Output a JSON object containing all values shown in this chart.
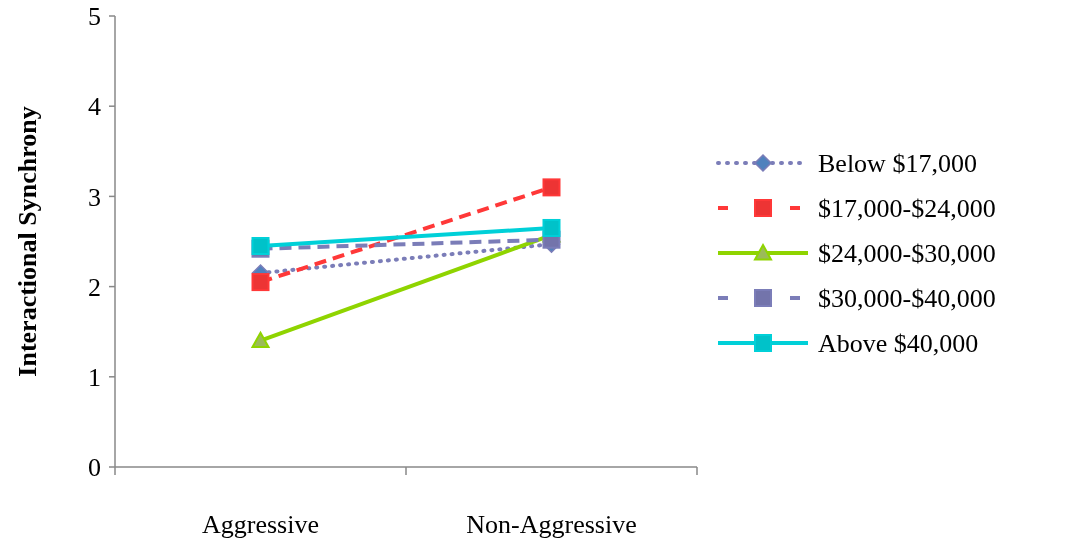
{
  "chart_data": {
    "type": "line",
    "ylabel": "Interactional Synchrony",
    "categories": [
      "Aggressive",
      "Non-Aggressive"
    ],
    "ylim": [
      0,
      5
    ],
    "yticks": [
      0,
      1,
      2,
      3,
      4,
      5
    ],
    "grid": false,
    "legend": "right",
    "series": [
      {
        "name": "Below $17,000",
        "color": "#7b7db8",
        "marker": "diamond",
        "line_style": "dotted",
        "values": [
          2.15,
          2.47
        ]
      },
      {
        "name": "$17,000-$24,000",
        "color": "#ff3838",
        "marker": "square",
        "line_style": "dashed",
        "values": [
          2.05,
          3.1
        ]
      },
      {
        "name": "$24,000-$30,000",
        "color": "#8fd400",
        "marker": "triangle",
        "line_style": "solid",
        "values": [
          1.4,
          2.57
        ]
      },
      {
        "name": "$30,000-$40,000",
        "color": "#7b7db8",
        "marker": "square",
        "line_style": "dashed",
        "values": [
          2.42,
          2.52
        ]
      },
      {
        "name": "Above $40,000",
        "color": "#00d0d8",
        "marker": "square",
        "line_style": "solid",
        "values": [
          2.45,
          2.65
        ]
      }
    ]
  }
}
